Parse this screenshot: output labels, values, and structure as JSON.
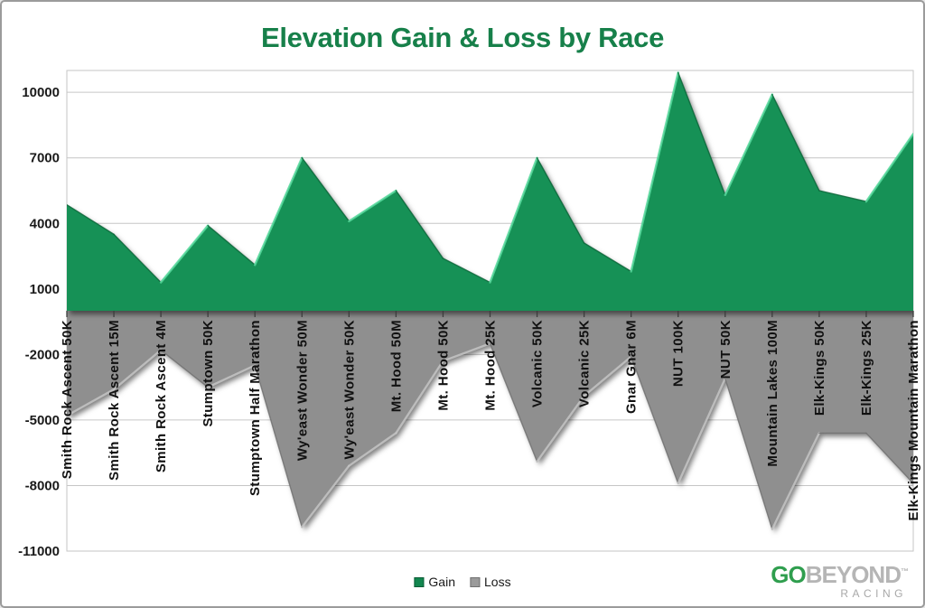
{
  "title": "Elevation Gain & Loss by Race",
  "colors": {
    "title_green": "#17804A",
    "gain": "#169156",
    "loss": "#8f8f8f",
    "grid": "#c6c6c6",
    "plot_border": "#c6c6c6",
    "axis_text": "#1a1a1a",
    "tick": "#3d3d3d",
    "gain_highlight": "#55d89b",
    "gain_shade": "#0b6638",
    "loss_highlight": "#c4c4c4",
    "loss_shade": "#717171",
    "legend_gain_swatch": "#12864f",
    "legend_loss_swatch": "#9a9a9a"
  },
  "chart_data": {
    "type": "area",
    "title": "Elevation Gain & Loss by Race",
    "categories": [
      "Smith Rock Ascent 50K",
      "Smith Rock Ascent 15M",
      "Smith Rock Ascent 4M",
      "Stumptown 50K",
      "Stumptown Half Marathon",
      "Wy'east Wonder 50M",
      "Wy'east Wonder 50K",
      "Mt. Hood 50M",
      "Mt. Hood 50K",
      "Mt. Hood 25K",
      "Volcanic 50K",
      "Volcanic 25K",
      "Gnar Gnar 6M",
      "NUT 100K",
      "NUT 50K",
      "Mountain Lakes 100M",
      "Elk-Kings 50K",
      "Elk-Kings 25K",
      "Elk-Kings Mountain Marathon"
    ],
    "series": [
      {
        "name": "Gain",
        "color": "#169156",
        "values": [
          4850,
          3500,
          1300,
          3900,
          2100,
          7000,
          4100,
          5500,
          2400,
          1300,
          7000,
          3100,
          1800,
          10900,
          5300,
          9900,
          5500,
          5000,
          8100
        ]
      },
      {
        "name": "Loss",
        "color": "#8f8f8f",
        "values": [
          -4800,
          -3600,
          -1800,
          -3500,
          -2500,
          -9900,
          -7100,
          -5600,
          -2300,
          -1500,
          -6900,
          -3900,
          -2100,
          -7900,
          -3100,
          -10000,
          -5600,
          -5600,
          -7900
        ]
      }
    ],
    "y_ticks": [
      10000,
      7000,
      4000,
      1000,
      -2000,
      -5000,
      -8000,
      -11000
    ],
    "ylim": [
      -11000,
      11000
    ],
    "xlabel": "",
    "ylabel": "",
    "grid": true,
    "legend_position": "bottom-center"
  },
  "legend": {
    "items": [
      {
        "label": "Gain"
      },
      {
        "label": "Loss"
      }
    ]
  },
  "logo": {
    "go": "GO",
    "beyond": "BEYOND",
    "tm": "™",
    "racing": "RACING"
  }
}
